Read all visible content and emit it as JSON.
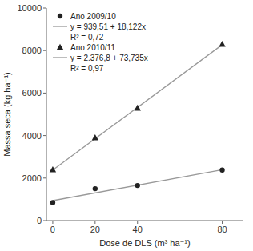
{
  "chart_data": {
    "type": "scatter",
    "xlabel": "Dose de DLS (m³ ha⁻¹)",
    "ylabel": "Massa seca (kg ha⁻¹)",
    "series": [
      {
        "name": "Ano 2009/10",
        "type": "scatter",
        "marker": "circle",
        "color": "#222222",
        "x": [
          0,
          20,
          40,
          80
        ],
        "values": [
          850,
          1500,
          1650,
          2380
        ]
      },
      {
        "name": "y = 939,51 + 18,122x",
        "type": "line",
        "line_style": "solid",
        "color": "#999999",
        "x": [
          0,
          80
        ],
        "values": [
          939.51,
          2389.27
        ]
      },
      {
        "name": "Ano 2010/11",
        "type": "scatter",
        "marker": "triangle",
        "color": "#222222",
        "x": [
          0,
          20,
          40,
          80
        ],
        "values": [
          2400,
          3900,
          5300,
          8300
        ]
      },
      {
        "name": "y = 2.376,8 + 73,735x",
        "type": "line",
        "line_style": "solid",
        "color": "#999999",
        "x": [
          0,
          80
        ],
        "values": [
          2376.8,
          8275.6
        ]
      }
    ],
    "annotations": [
      "R² = 0,72",
      "R² = 0,97"
    ],
    "xlim": [
      -3,
      90
    ],
    "ylim": [
      0,
      10000
    ],
    "xticks": [
      0,
      20,
      40,
      80
    ],
    "yticks": [
      0,
      2000,
      4000,
      6000,
      8000,
      10000
    ],
    "grid": false,
    "legend": "upper left"
  }
}
